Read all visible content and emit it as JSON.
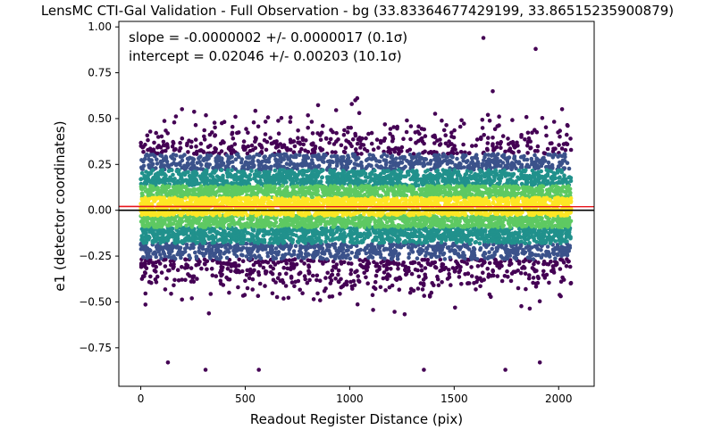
{
  "chart_data": {
    "type": "scatter",
    "title": "LensMC CTI-Gal Validation - Full Observation - bg (33.83364677429199, 33.86515235900879)",
    "xlabel": "Readout Register Distance (pix)",
    "ylabel": "e1 (detector coordinates)",
    "xlim": [
      -105,
      2170
    ],
    "ylim": [
      -0.96,
      1.03
    ],
    "x_ticks": [
      0,
      500,
      1000,
      1500,
      2000
    ],
    "y_ticks": [
      -0.75,
      -0.5,
      -0.25,
      0.0,
      0.25,
      0.5,
      0.75,
      1.0
    ],
    "x_tick_labels": [
      "0",
      "500",
      "1000",
      "1500",
      "2000"
    ],
    "y_tick_labels": [
      "−0.75",
      "−0.50",
      "−0.25",
      "0.00",
      "0.25",
      "0.50",
      "0.75",
      "1.00"
    ],
    "grid": false,
    "annotations": [
      "slope = -0.0000002 +/- 0.0000017 (0.1σ)",
      "intercept = 0.02046 +/- 0.00203 (10.1σ)"
    ],
    "reference_lines": [
      {
        "name": "zero",
        "y": 0.0,
        "color": "#000000"
      },
      {
        "name": "fit",
        "slope": -2e-07,
        "intercept": 0.02046,
        "color": "#e8141c"
      }
    ],
    "scatter": {
      "x_range": [
        0,
        2060
      ],
      "density_colormap": [
        "#440154",
        "#3b528b",
        "#21918c",
        "#5ec962",
        "#fde725"
      ],
      "outliers": [
        {
          "x": 1640,
          "y": 0.94
        },
        {
          "x": 1890,
          "y": 0.88
        },
        {
          "x": 310,
          "y": -0.87
        },
        {
          "x": 565,
          "y": -0.87
        },
        {
          "x": 1355,
          "y": -0.87
        },
        {
          "x": 1745,
          "y": -0.87
        },
        {
          "x": 130,
          "y": -0.83
        },
        {
          "x": 1910,
          "y": -0.83
        }
      ]
    }
  }
}
